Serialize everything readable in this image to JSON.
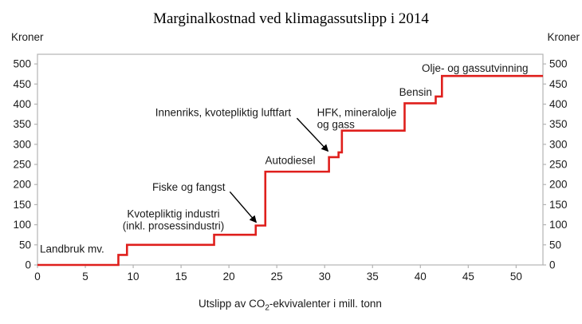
{
  "page": {
    "title": "Marginalkostnad ved klimagassutslipp i 2014"
  },
  "axes": {
    "y_left_unit": "Kroner",
    "y_right_unit": "Kroner",
    "x_title": {
      "pre": "Utslipp av CO",
      "sub": "2",
      "post": "-ekvivalenter i mill. tonn"
    }
  },
  "colors": {
    "line": "#df1f1c",
    "axis": "#b3b3b3",
    "text": "#1a1a1a",
    "arrow": "#000000"
  },
  "chart_data": {
    "type": "line",
    "subtype": "step",
    "title": "Marginalkostnad ved klimagassutslipp i 2014",
    "xlabel": "Utslipp av CO2-ekvivalenter i mill. tonn",
    "ylabel": "Kroner",
    "xlim": [
      0,
      52.8
    ],
    "ylim": [
      0,
      524
    ],
    "x_ticks": [
      0,
      5,
      10,
      15,
      20,
      25,
      30,
      35,
      40,
      45,
      50
    ],
    "y_ticks": [
      0,
      50,
      100,
      150,
      200,
      250,
      300,
      350,
      400,
      450,
      500
    ],
    "grid": false,
    "legend": false,
    "step_segments": [
      {
        "sector": "Landbruk mv.",
        "from_x": 0,
        "to_x": 8.45,
        "value": 0
      },
      {
        "sector": "",
        "from_x": 8.45,
        "to_x": 9.35,
        "value": 25
      },
      {
        "sector": "Kvotepliktig industri (inkl. prosessindustri)",
        "from_x": 9.35,
        "to_x": 18.45,
        "value": 50
      },
      {
        "sector": "",
        "from_x": 18.45,
        "to_x": 22.8,
        "value": 75
      },
      {
        "sector": "Fiske og fangst",
        "from_x": 22.8,
        "to_x": 23.8,
        "value": 98
      },
      {
        "sector": "Autodiesel",
        "from_x": 23.8,
        "to_x": 30.45,
        "value": 232
      },
      {
        "sector": "Innenriks, kvotepliktig luftfart",
        "from_x": 30.45,
        "to_x": 31.45,
        "value": 268
      },
      {
        "sector": "Innenriks, kvotepliktig luftfart",
        "from_x": 31.45,
        "to_x": 31.8,
        "value": 280
      },
      {
        "sector": "HFK, mineralolje og gass",
        "from_x": 31.8,
        "to_x": 38.35,
        "value": 334
      },
      {
        "sector": "Bensin",
        "from_x": 38.35,
        "to_x": 41.6,
        "value": 402
      },
      {
        "sector": "",
        "from_x": 41.6,
        "to_x": 42.25,
        "value": 419
      },
      {
        "sector": "Olje- og gassutvinning",
        "from_x": 42.25,
        "to_x": 52.8,
        "value": 470
      }
    ],
    "annotations": [
      {
        "name": "label-landbruk",
        "lines": [
          "Landbruk mv."
        ],
        "x": 0.25,
        "y": 40,
        "anchor": "start"
      },
      {
        "name": "label-kvotepliktig-industri",
        "lines": [
          "Kvotepliktig industri",
          "(inkl. prosessindustri)"
        ],
        "x": 14.2,
        "y": 127,
        "anchor": "middle"
      },
      {
        "name": "label-fiske-og-fangst",
        "lines": [
          "Fiske og fangst"
        ],
        "x": 15.8,
        "y": 194,
        "anchor": "middle"
      },
      {
        "name": "label-autodiesel",
        "lines": [
          "Autodiesel"
        ],
        "x": 26.4,
        "y": 260,
        "anchor": "middle"
      },
      {
        "name": "label-innenriks-luftfart",
        "lines": [
          "Innenriks, kvotepliktig luftfart"
        ],
        "x": 19.4,
        "y": 379,
        "anchor": "middle"
      },
      {
        "name": "label-hfk-mineralolje-gass",
        "lines": [
          "HFK, mineralolje",
          "og gass"
        ],
        "x": 29.2,
        "y": 379,
        "anchor": "start"
      },
      {
        "name": "label-bensin",
        "lines": [
          "Bensin"
        ],
        "x": 39.5,
        "y": 430,
        "anchor": "middle"
      },
      {
        "name": "label-olje-gassutvinning",
        "lines": [
          "Olje- og gassutvinning"
        ],
        "x": 45.7,
        "y": 489,
        "anchor": "middle"
      }
    ],
    "arrows": [
      {
        "name": "arrow-fiske-og-fangst",
        "x1": 20.1,
        "y1": 182,
        "x2": 22.85,
        "y2": 106
      },
      {
        "name": "arrow-innenriks-luftfart",
        "x1": 27.1,
        "y1": 365,
        "x2": 30.35,
        "y2": 283
      }
    ]
  }
}
